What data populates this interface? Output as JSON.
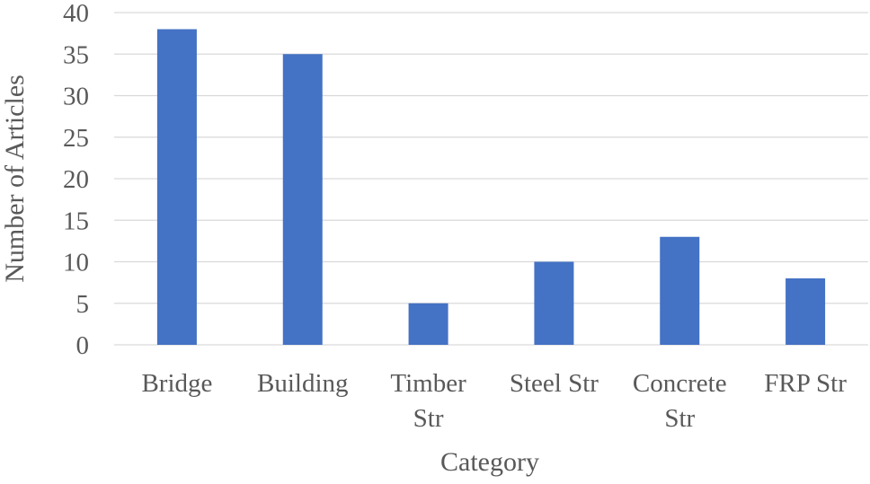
{
  "chart_data": {
    "type": "bar",
    "title": "",
    "xlabel": "Category",
    "ylabel": "Number of Articles",
    "categories": [
      [
        "Bridge"
      ],
      [
        "Building"
      ],
      [
        "Timber",
        "Str"
      ],
      [
        "Steel Str"
      ],
      [
        "Concrete",
        "Str"
      ],
      [
        "FRP Str"
      ]
    ],
    "values": [
      38,
      35,
      5,
      10,
      13,
      8
    ],
    "ylim": [
      0,
      40
    ],
    "yticks": [
      "0",
      "5",
      "10",
      "15",
      "20",
      "25",
      "30",
      "35",
      "40"
    ],
    "grid": true,
    "legend": "none",
    "colors": {
      "bar": "#4472C4",
      "grid": "#d9d9d9",
      "text": "#595959"
    }
  }
}
